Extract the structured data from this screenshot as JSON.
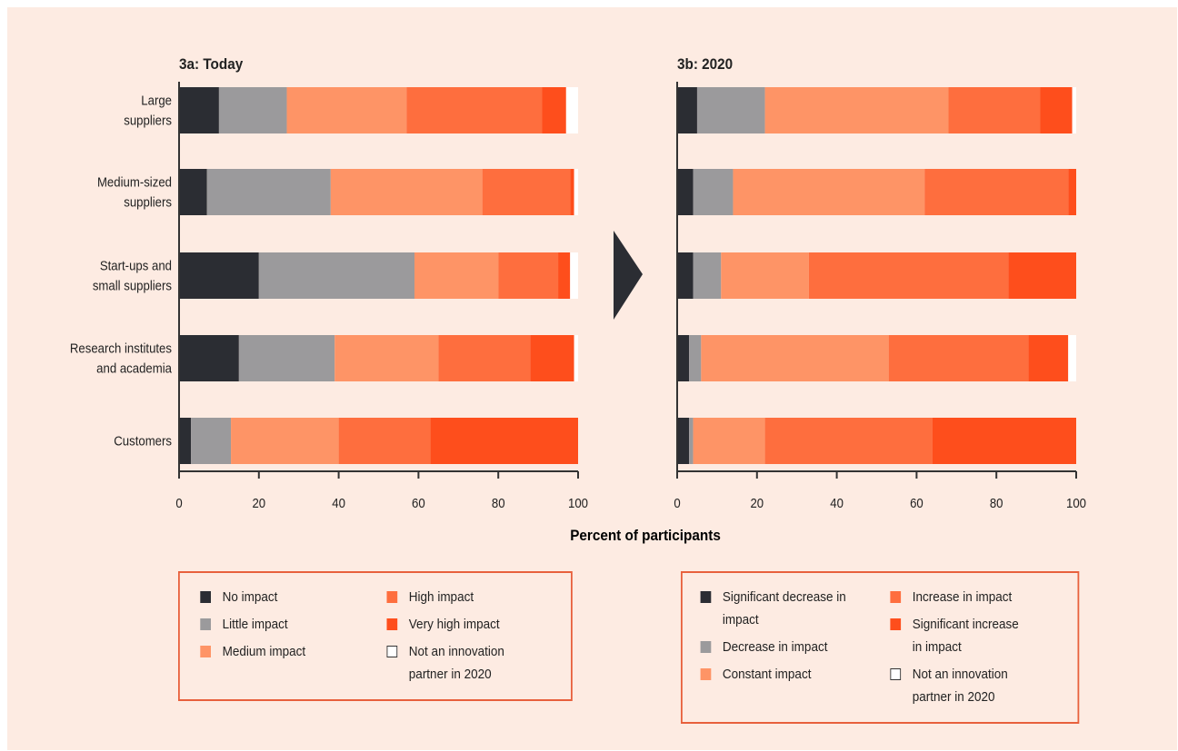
{
  "colors": {
    "background": "#fdebe2",
    "border": "#e8603c",
    "axis": "#333333",
    "arrow": "#2b2d33",
    "cat_colors": [
      "#2b2d33",
      "#9b9a9c",
      "#fe9466",
      "#fe6e3e",
      "#fe4e1c",
      "#ffffff"
    ]
  },
  "axis_label": "Percent of participants",
  "chart_data": [
    {
      "type": "bar",
      "stacked": true,
      "orientation": "horizontal",
      "title": "3a: Today",
      "categories": [
        "Large suppliers",
        "Medium-sized suppliers",
        "Start-ups and small suppliers",
        "Research institutes and academia",
        "Customers"
      ],
      "series": [
        {
          "name": "No impact",
          "values": [
            10,
            7,
            20,
            15,
            3
          ]
        },
        {
          "name": "Little impact",
          "values": [
            17,
            31,
            39,
            24,
            10
          ]
        },
        {
          "name": "Medium impact",
          "values": [
            30,
            38,
            21,
            26,
            27
          ]
        },
        {
          "name": "High impact",
          "values": [
            34,
            22,
            15,
            23,
            23
          ]
        },
        {
          "name": "Very high impact",
          "values": [
            6,
            1,
            3,
            11,
            37
          ]
        },
        {
          "name": "Not an innovation partner in 2020",
          "values": [
            3,
            1,
            2,
            1,
            0
          ]
        }
      ],
      "xlabel": "Percent of participants",
      "xlim": [
        0,
        100
      ],
      "xticks": [
        "0",
        "20",
        "40",
        "60",
        "80",
        "100"
      ],
      "legend": "bottom-left"
    },
    {
      "type": "bar",
      "stacked": true,
      "orientation": "horizontal",
      "title": "3b: 2020",
      "categories": [
        "Large suppliers",
        "Medium-sized suppliers",
        "Start-ups and small suppliers",
        "Research institutes and academia",
        "Customers"
      ],
      "series": [
        {
          "name": "Significant decrease in impact",
          "values": [
            5,
            4,
            4,
            3,
            3
          ]
        },
        {
          "name": "Decrease in impact",
          "values": [
            17,
            10,
            7,
            3,
            1
          ]
        },
        {
          "name": "Constant impact",
          "values": [
            46,
            48,
            22,
            47,
            18
          ]
        },
        {
          "name": "Increase in impact",
          "values": [
            23,
            36,
            50,
            35,
            42
          ]
        },
        {
          "name": "Significant increase in impact",
          "values": [
            8,
            2,
            17,
            10,
            36
          ]
        },
        {
          "name": "Not an innovation partner in 2020",
          "values": [
            1,
            0,
            0,
            2,
            0
          ]
        }
      ],
      "xlabel": "Percent of participants",
      "xlim": [
        0,
        100
      ],
      "xticks": [
        "0",
        "20",
        "40",
        "60",
        "80",
        "100"
      ],
      "legend": "bottom-right"
    }
  ],
  "category_lines": [
    [
      "Large",
      "suppliers"
    ],
    [
      "Medium-sized",
      "suppliers"
    ],
    [
      "Start-ups and",
      "small suppliers"
    ],
    [
      "Research institutes",
      "and academia"
    ],
    [
      "Customers"
    ]
  ],
  "legends": {
    "today": [
      "No impact",
      "Little impact",
      "Medium impact",
      "High impact",
      "Very high impact",
      "Not an innovation partner in 2020"
    ],
    "future": [
      "Significant decrease in impact",
      "Decrease in impact",
      "Constant impact",
      "Increase in impact",
      "Significant increase in impact",
      "Not an innovation partner in 2020"
    ]
  }
}
